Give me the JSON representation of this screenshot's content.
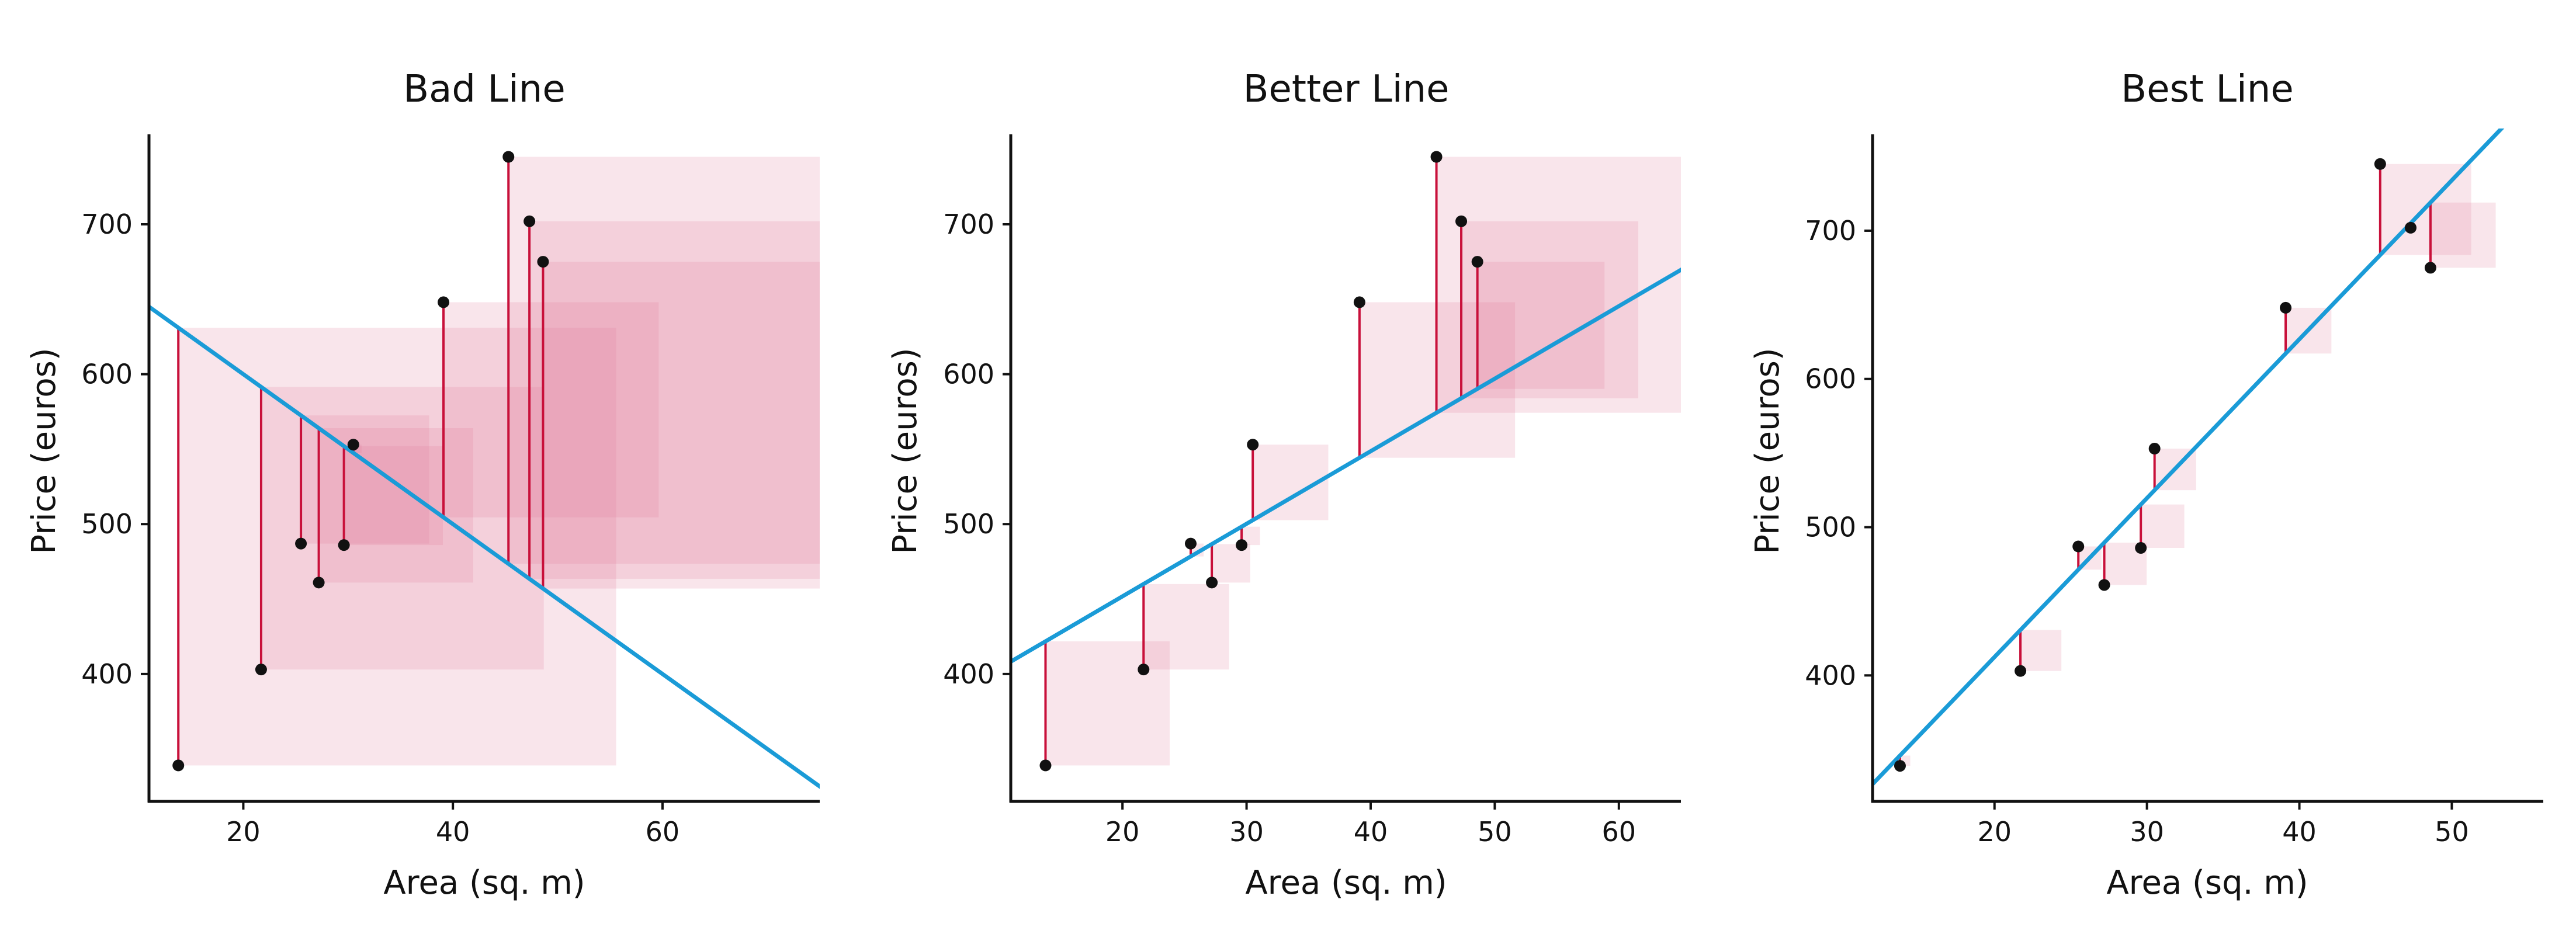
{
  "colors": {
    "fit_line": "#1a9bd7",
    "residual": "#c8103a",
    "square_fill": "#e37c99",
    "point": "#111111",
    "axis": "#111111"
  },
  "chart_data": [
    {
      "type": "scatter",
      "title": "Bad Line",
      "xlabel": "Area (sq. m)",
      "ylabel": "Price (euros)",
      "xlim": [
        11,
        75
      ],
      "ylim": [
        315,
        760
      ],
      "xticks": [
        20,
        40,
        60
      ],
      "yticks": [
        400,
        500,
        600,
        700
      ],
      "line": {
        "slope": -5.0,
        "intercept": 700
      },
      "points": [
        {
          "x": 13.8,
          "y": 339
        },
        {
          "x": 21.7,
          "y": 403
        },
        {
          "x": 25.5,
          "y": 487
        },
        {
          "x": 27.2,
          "y": 461
        },
        {
          "x": 29.6,
          "y": 486
        },
        {
          "x": 30.5,
          "y": 553
        },
        {
          "x": 39.1,
          "y": 648
        },
        {
          "x": 45.3,
          "y": 745
        },
        {
          "x": 47.3,
          "y": 702
        },
        {
          "x": 48.6,
          "y": 675
        }
      ],
      "grid": false
    },
    {
      "type": "scatter",
      "title": "Better Line",
      "xlabel": "Area (sq. m)",
      "ylabel": "Price (euros)",
      "xlim": [
        11,
        65
      ],
      "ylim": [
        315,
        760
      ],
      "xticks": [
        20,
        30,
        40,
        50,
        60
      ],
      "yticks": [
        400,
        500,
        600,
        700
      ],
      "line": {
        "slope": 4.84,
        "intercept": 355
      },
      "points": [
        {
          "x": 13.8,
          "y": 339
        },
        {
          "x": 21.7,
          "y": 403
        },
        {
          "x": 25.5,
          "y": 487
        },
        {
          "x": 27.2,
          "y": 461
        },
        {
          "x": 29.6,
          "y": 486
        },
        {
          "x": 30.5,
          "y": 553
        },
        {
          "x": 39.1,
          "y": 648
        },
        {
          "x": 45.3,
          "y": 745
        },
        {
          "x": 47.3,
          "y": 702
        },
        {
          "x": 48.6,
          "y": 675
        }
      ],
      "grid": false
    },
    {
      "type": "scatter",
      "title": "Best Line",
      "xlabel": "Area (sq. m)",
      "ylabel": "Price (euros)",
      "xlim": [
        12,
        56
      ],
      "ylim": [
        315,
        765
      ],
      "xticks": [
        20,
        30,
        40,
        50
      ],
      "yticks": [
        400,
        500,
        600,
        700
      ],
      "line": {
        "slope": 10.72,
        "intercept": 198
      },
      "points": [
        {
          "x": 13.8,
          "y": 339
        },
        {
          "x": 21.7,
          "y": 403
        },
        {
          "x": 25.5,
          "y": 487
        },
        {
          "x": 27.2,
          "y": 461
        },
        {
          "x": 29.6,
          "y": 486
        },
        {
          "x": 30.5,
          "y": 553
        },
        {
          "x": 39.1,
          "y": 648
        },
        {
          "x": 45.3,
          "y": 745
        },
        {
          "x": 47.3,
          "y": 702
        },
        {
          "x": 48.6,
          "y": 675
        }
      ],
      "grid": false
    }
  ]
}
